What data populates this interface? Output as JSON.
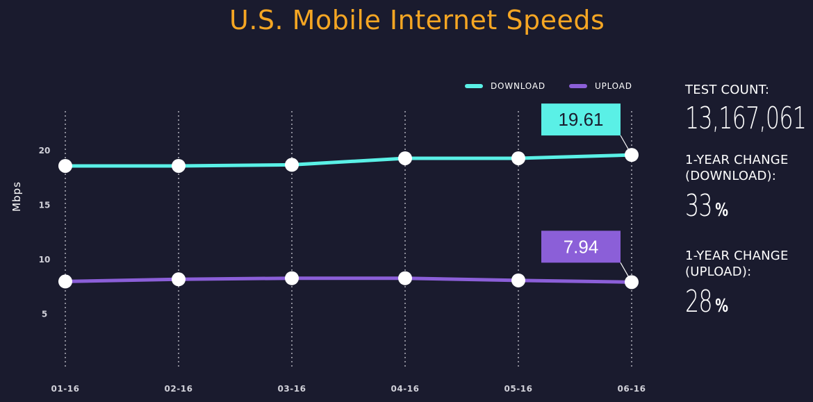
{
  "chart_data": {
    "type": "line",
    "title": "U.S. Mobile Internet Speeds",
    "ylabel": "Mbps",
    "xlabel": "",
    "categories": [
      "01-16",
      "02-16",
      "03-16",
      "04-16",
      "05-16",
      "06-16"
    ],
    "yticks": [
      "20",
      "15",
      "10",
      "5"
    ],
    "ytick_values": [
      20,
      15,
      10,
      5
    ],
    "ylim": [
      0,
      24
    ],
    "grid": "vertical-dotted",
    "legend_position": "top-right",
    "series": [
      {
        "name": "DOWNLOAD",
        "color": "#5af0e6",
        "values": [
          18.6,
          18.6,
          18.7,
          19.3,
          19.3,
          19.61
        ],
        "callout": "19.61"
      },
      {
        "name": "UPLOAD",
        "color": "#8b5fd8",
        "values": [
          8.0,
          8.2,
          8.3,
          8.3,
          8.1,
          7.94
        ],
        "callout": "7.94"
      }
    ]
  },
  "stats": {
    "test_count_label": "TEST COUNT:",
    "test_count_value": "13,167,061",
    "download_change_label": "1-YEAR CHANGE\n(DOWNLOAD):",
    "download_change_value": "33",
    "upload_change_label": "1-YEAR CHANGE\n(UPLOAD):",
    "upload_change_value": "28",
    "percent_symbol": "%"
  },
  "colors": {
    "background": "#1a1b2e",
    "title": "#f5a623",
    "point_fill": "#ffffff"
  }
}
